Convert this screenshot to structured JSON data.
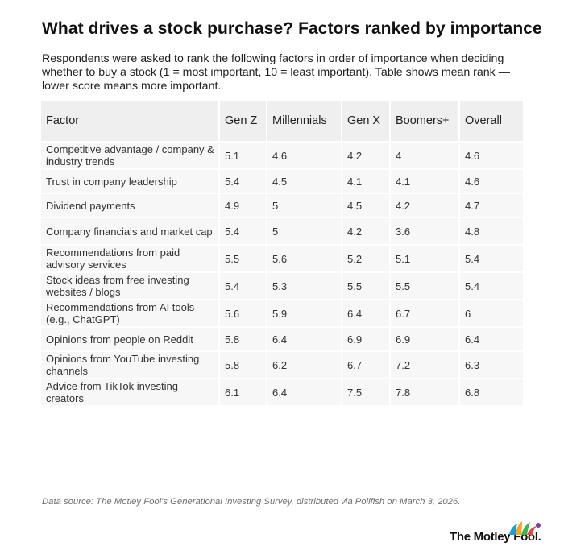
{
  "title": "What drives a stock purchase? Factors ranked by importance",
  "subtitle": "Respondents were asked to rank the following factors in order of importance when deciding whether to buy a stock (1 = most important, 10 = least important). Table shows mean rank — lower score means more important.",
  "source": "Data source: The Motley Fool's Generational Investing Survey, distributed via Pollfish on March 3, 2026.",
  "logo": {
    "text": "The Motley Fool.",
    "jester_colors": [
      "#1e9bd7",
      "#f5a623",
      "#3cb54a",
      "#e8483b",
      "#7b3fa0"
    ]
  },
  "chart_data": {
    "type": "table",
    "columns": [
      "Factor",
      "Gen Z",
      "Millennials",
      "Gen X",
      "Boomers+",
      "Overall"
    ],
    "rows": [
      [
        "Competitive advantage / company & industry trends",
        "5.1",
        "4.6",
        "4.2",
        "4",
        "4.6"
      ],
      [
        "Trust in company leadership",
        "5.4",
        "4.5",
        "4.1",
        "4.1",
        "4.6"
      ],
      [
        "Dividend payments",
        "4.9",
        "5",
        "4.5",
        "4.2",
        "4.7"
      ],
      [
        "Company financials and market cap",
        "5.4",
        "5",
        "4.2",
        "3.6",
        "4.8"
      ],
      [
        "Recommendations from paid advisory services",
        "5.5",
        "5.6",
        "5.2",
        "5.1",
        "5.4"
      ],
      [
        "Stock ideas from free investing websites / blogs",
        "5.4",
        "5.3",
        "5.5",
        "5.5",
        "5.4"
      ],
      [
        "Recommendations from AI tools (e.g., ChatGPT)",
        "5.6",
        "5.9",
        "6.4",
        "6.7",
        "6"
      ],
      [
        "Opinions from people on Reddit",
        "5.8",
        "6.4",
        "6.9",
        "6.9",
        "6.4"
      ],
      [
        "Opinions from YouTube investing channels",
        "5.8",
        "6.2",
        "6.7",
        "7.2",
        "6.3"
      ],
      [
        "Advice from TikTok investing creators",
        "6.1",
        "6.4",
        "7.5",
        "7.8",
        "6.8"
      ]
    ]
  }
}
